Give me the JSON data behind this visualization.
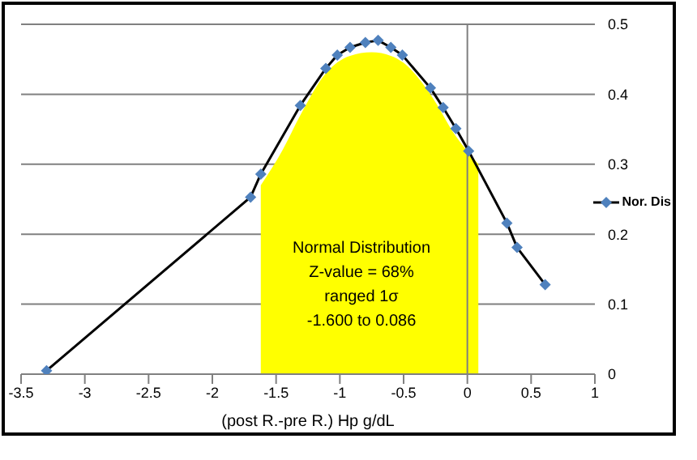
{
  "chart_data": {
    "type": "line",
    "xlabel": "(post R.-pre R.) Hp g/dL",
    "series": [
      {
        "type": "area",
        "color": "#ffff00",
        "marker": "none",
        "x": [
          -1.62,
          -1.45,
          -1.31,
          -1.11,
          -0.92,
          -0.75,
          -0.6,
          -0.5,
          -0.29,
          -0.09,
          0.086
        ],
        "values": [
          0.27,
          0.32,
          0.37,
          0.43,
          0.455,
          0.46,
          0.455,
          0.445,
          0.4,
          0.34,
          0.3
        ]
      },
      {
        "name": "Nor. Dis",
        "color": "#4f81bd",
        "x": [
          -3.3,
          -1.7,
          -1.62,
          -1.31,
          -1.11,
          -1.02,
          -0.92,
          -0.8,
          -0.7,
          -0.6,
          -0.51,
          -0.29,
          -0.19,
          -0.09,
          0.01,
          0.31,
          0.39,
          0.61
        ],
        "values": [
          0.005,
          0.253,
          0.286,
          0.384,
          0.437,
          0.456,
          0.467,
          0.474,
          0.477,
          0.467,
          0.456,
          0.409,
          0.381,
          0.351,
          0.319,
          0.216,
          0.181,
          0.128
        ]
      }
    ],
    "xlim": [
      -3.5,
      1
    ],
    "xticks": [
      -3.5,
      -3,
      -2.5,
      -2,
      -1.5,
      -1,
      -0.5,
      0,
      0.5,
      1
    ],
    "ylim": [
      0,
      0.5
    ],
    "yticks": [
      0,
      0.1,
      0.2,
      0.3,
      0.4,
      0.5
    ],
    "ref_lines": [
      {
        "axis": "x",
        "value": 0,
        "color": "#7f7f7f"
      }
    ],
    "annotations": [
      "Normal Distribution",
      "Z-value = 68%",
      "ranged 1σ",
      "-1.600 to 0.086"
    ],
    "grid": "y",
    "legend": "right",
    "marker": "diamond",
    "line_style": "solid"
  }
}
